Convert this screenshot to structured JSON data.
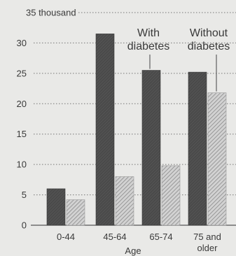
{
  "chart_data": {
    "type": "bar",
    "title": "",
    "xlabel": "Age",
    "ylabel": "",
    "ylim": [
      0,
      35
    ],
    "y_ticks": [
      0,
      5,
      10,
      15,
      20,
      25,
      30,
      35
    ],
    "y_top_label": "35 thousand",
    "grid": "horizontal dotted",
    "categories": [
      [
        "0-44"
      ],
      [
        "45-64"
      ],
      [
        "65-74"
      ],
      [
        "75 and",
        "older"
      ]
    ],
    "series": [
      {
        "name": "With diabetes",
        "label_lines": [
          "With",
          "diabetes"
        ],
        "values": [
          6,
          31.5,
          25.5,
          25.2
        ],
        "color": "#4d4d4d",
        "pattern": "solid"
      },
      {
        "name": "Without diabetes",
        "label_lines": [
          "Without",
          "diabetes"
        ],
        "values": [
          4.2,
          8,
          9.8,
          21.8
        ],
        "color": "#bdbdbd",
        "pattern": "hatched"
      }
    ]
  }
}
